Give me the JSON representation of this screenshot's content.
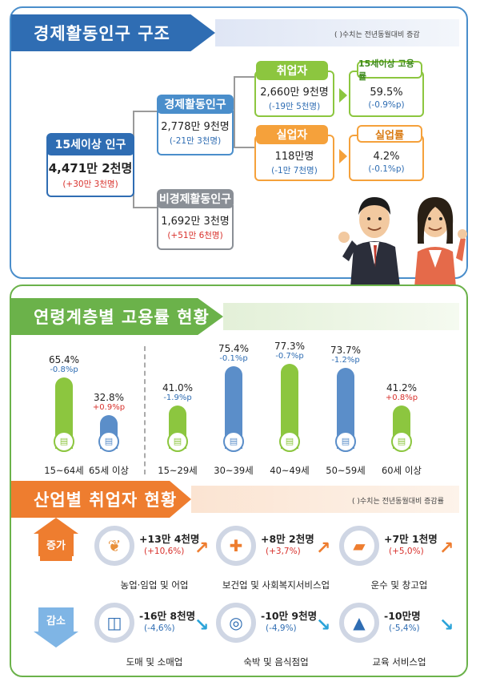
{
  "section1": {
    "title": "경제활동인구 구조",
    "note": "( )수치는 전년동월대비 증감",
    "pop15": {
      "label": "15세이상 인구",
      "value": "4,471만 2천명",
      "change": "(+30만 3천명)"
    },
    "active": {
      "label": "경제활동인구",
      "value": "2,778만 9천명",
      "change": "(-21만 3천명)"
    },
    "inactive": {
      "label": "비경제활동인구",
      "value": "1,692만 3천명",
      "change": "(+51만 6천명)"
    },
    "employed": {
      "label": "취업자",
      "value": "2,660만 9천명",
      "change": "(-19만 5천명)"
    },
    "employment_rate": {
      "label": "15세이상 고용률",
      "value": "59.5%",
      "change": "(-0.9%p)"
    },
    "unemployed": {
      "label": "실업자",
      "value": "118만명",
      "change": "(-1만 7천명)"
    },
    "unemployment_rate": {
      "label": "실업률",
      "value": "4.2%",
      "change": "(-0.1%p)"
    }
  },
  "section2": {
    "title": "연령계층별 고용률 현황",
    "chart_data": {
      "type": "bar",
      "categories": [
        "15~64세",
        "65세 이상",
        "15~29세",
        "30~39세",
        "40~49세",
        "50~59세",
        "60세 이상"
      ],
      "values": [
        65.4,
        32.8,
        41.0,
        75.4,
        77.3,
        73.7,
        41.2
      ],
      "value_labels": [
        "65.4%",
        "32.8%",
        "41.0%",
        "75.4%",
        "77.3%",
        "73.7%",
        "41.2%"
      ],
      "changes": [
        "-0.8%p",
        "+0.9%p",
        "-1.9%p",
        "-0.1%p",
        "-0.7%p",
        "-1.2%p",
        "+0.8%p"
      ],
      "colors": [
        "#8cc63f",
        "#5b8ec9",
        "#8cc63f",
        "#5b8ec9",
        "#8cc63f",
        "#5b8ec9",
        "#8cc63f"
      ]
    }
  },
  "section3": {
    "title": "산업별 취업자 현황",
    "note": "( )수치는 전년동월대비 증감률",
    "increase_label": "증가",
    "decrease_label": "감소",
    "increase": [
      {
        "value": "+13만 4천명",
        "change": "(+10,6%)",
        "label": "농업·임업 및 어업",
        "icon": "wheat-icon"
      },
      {
        "value": "+8만 2천명",
        "change": "(+3,7%)",
        "label": "보건업 및 사회복지서비스업",
        "icon": "medical-kit-icon"
      },
      {
        "value": "+7만 1천명",
        "change": "(+5,0%)",
        "label": "운수 및 창고업",
        "icon": "truck-icon"
      }
    ],
    "decrease": [
      {
        "value": "-16만 8천명",
        "change": "(-4,6%)",
        "label": "도매 및 소매업",
        "icon": "basket-icon"
      },
      {
        "value": "-10만 9천명",
        "change": "(-4,9%)",
        "label": "숙박 및 음식점업",
        "icon": "dining-icon"
      },
      {
        "value": "-10만명",
        "change": "(-5,4%)",
        "label": "교육 서비스업",
        "icon": "graduation-cap-icon"
      }
    ]
  }
}
